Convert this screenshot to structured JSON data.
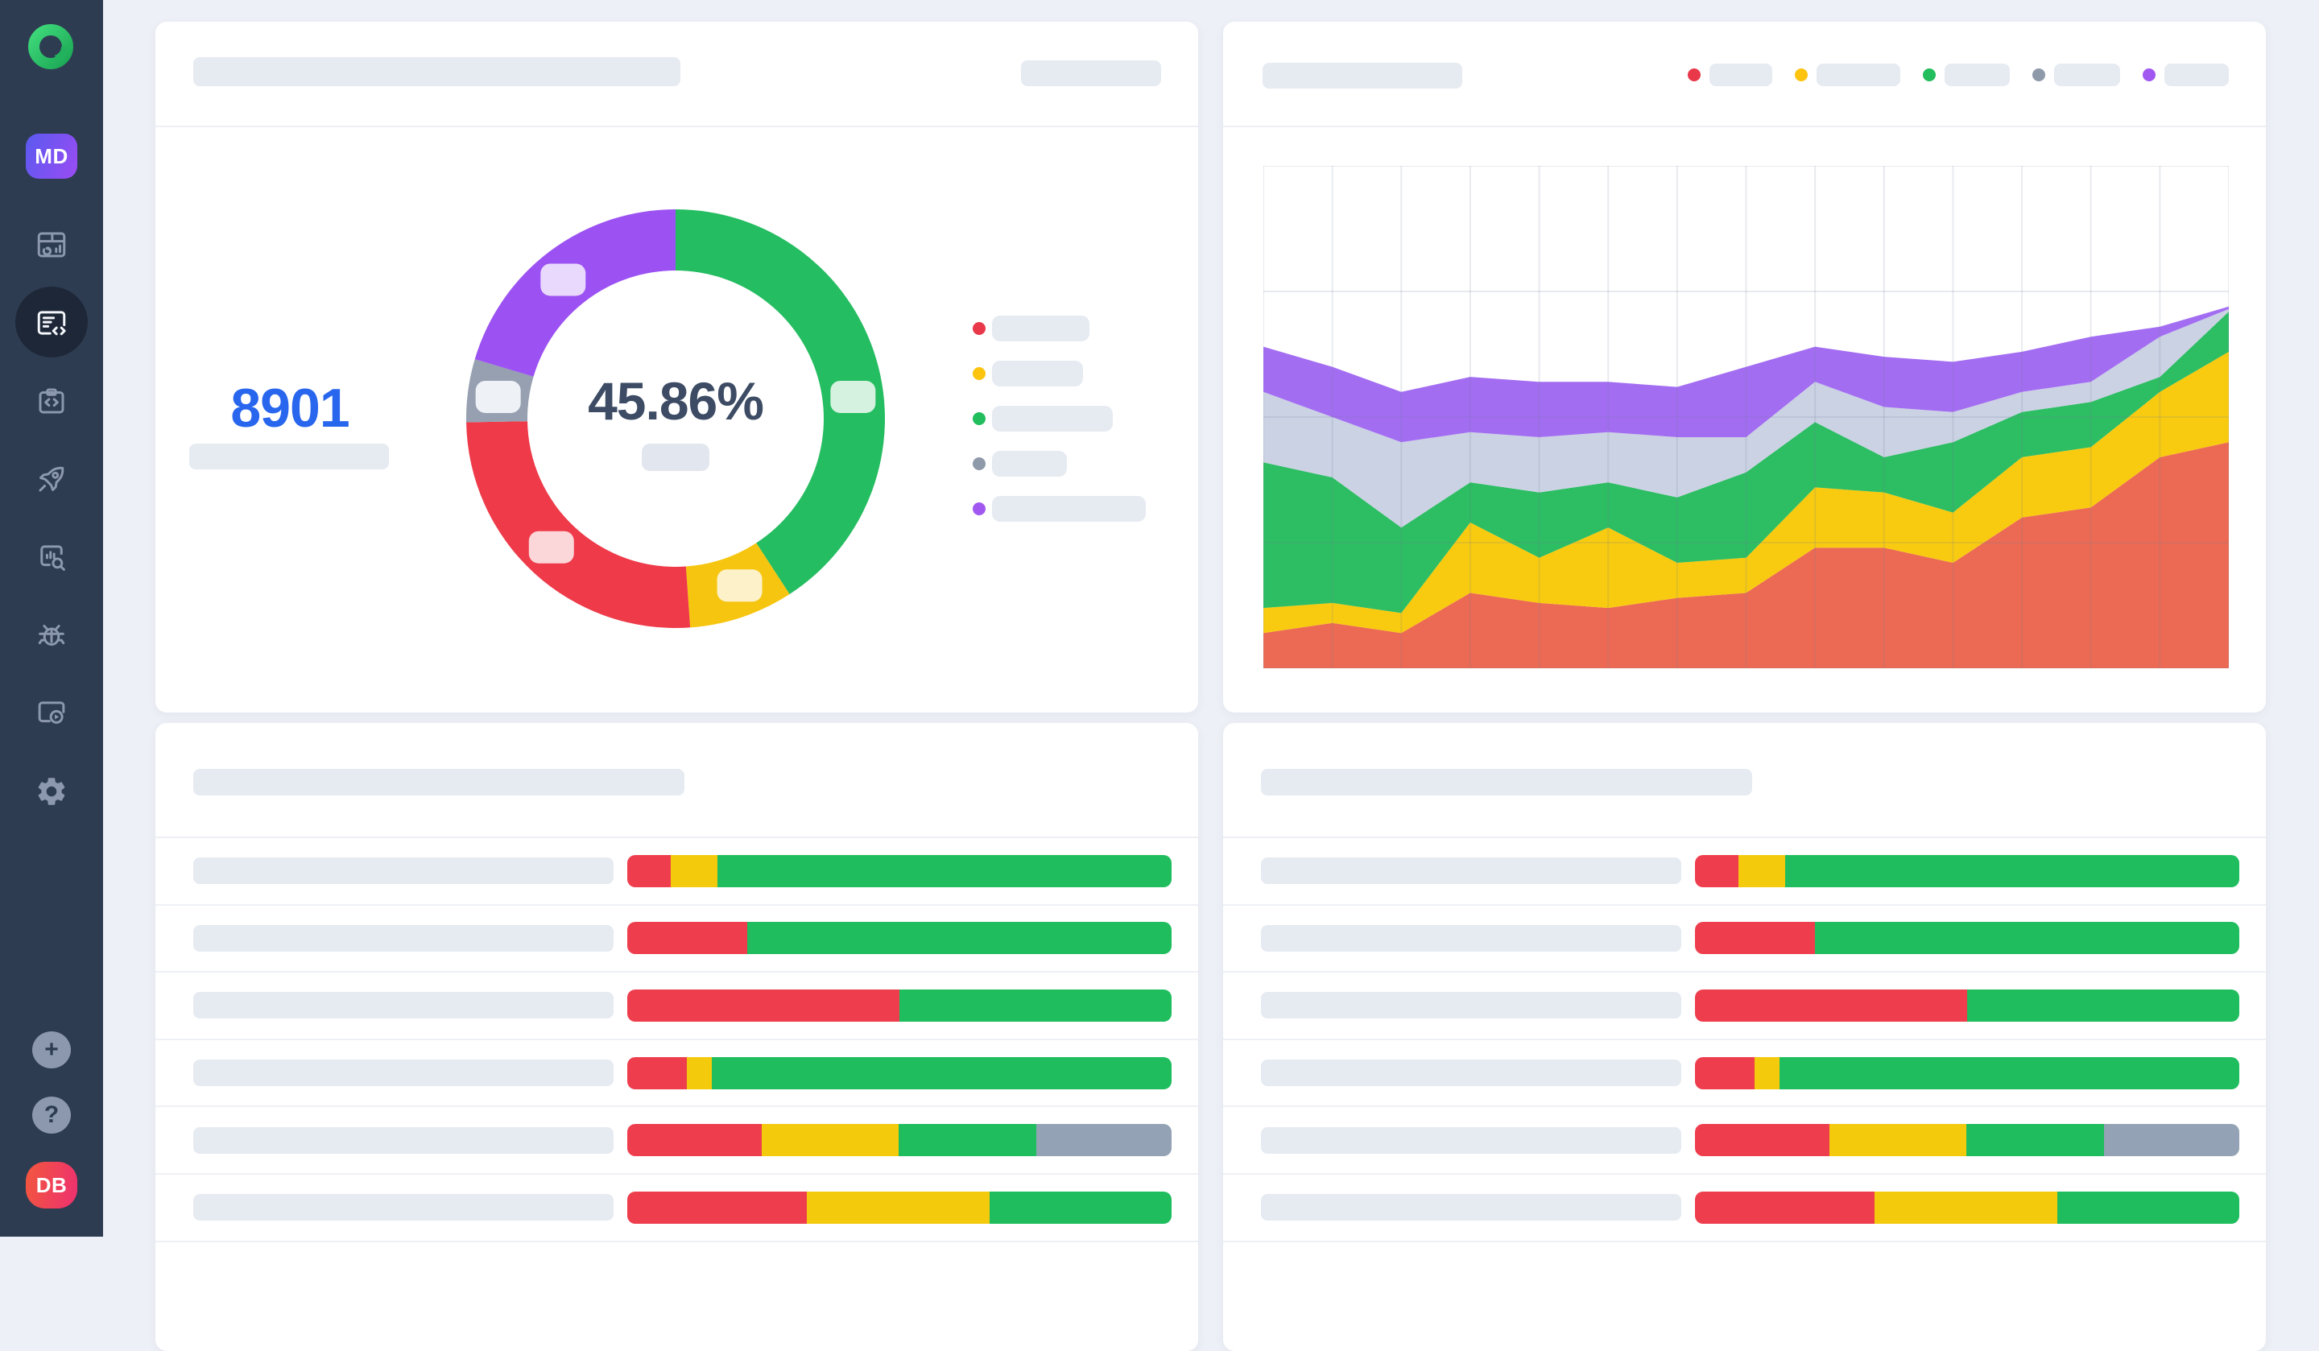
{
  "app": {
    "logo_icon": "allure-logo",
    "workspace_avatar": "MD",
    "user_avatar": "DB"
  },
  "sidebar": {
    "bg_color": "#2e3c52",
    "icon_color": "#8b98ad",
    "active_item_index": 1,
    "nav_icons": [
      "dashboard-window-icon",
      "document-code-icon",
      "clipboard-code-icon",
      "rocket-icon",
      "chart-search-icon",
      "bug-icon",
      "window-play-icon",
      "gear-icon"
    ],
    "bottom_icons": [
      "plus-icon",
      "question-icon"
    ],
    "plus_glyph": "+",
    "question_glyph": "?"
  },
  "stat_card": {
    "value": "8901",
    "value_color": "#2866ee"
  },
  "chart_data": [
    {
      "type": "pie",
      "title": "status donut (skeleton card, no text labels)",
      "center_label": "45.86%",
      "center_label_color": "#3d4c64",
      "segments": [
        {
          "name": "green",
          "color": "#25bd61",
          "tint": "#d4f2df",
          "deg": 147.0,
          "chip_deg": 83
        },
        {
          "name": "yellow",
          "color": "#f6c50f",
          "tint": "#fdf1c9",
          "deg": 29.0,
          "chip_deg": 159
        },
        {
          "name": "red",
          "color": "#ee3a49",
          "tint": "#fbd7da",
          "deg": 93.0,
          "chip_deg": 224
        },
        {
          "name": "gray",
          "color": "#96a0b1",
          "tint": "#eef1f5",
          "deg": 17.5,
          "chip_deg": 277
        },
        {
          "name": "purple",
          "color": "#9c52f2",
          "tint": "#e9d9fc",
          "deg": 73.5,
          "chip_deg": 321
        }
      ],
      "outer_radius": 260,
      "inner_radius": 184,
      "legend_position": "right",
      "legend": [
        {
          "color": "#e8384a",
          "w": 121
        },
        {
          "color": "#fcc40e",
          "w": 113
        },
        {
          "color": "#22bd5c",
          "w": 150
        },
        {
          "color": "#8e99aa",
          "w": 93
        },
        {
          "color": "#a158f0",
          "w": 191
        }
      ]
    },
    {
      "type": "area",
      "title": "stacked status trend (skeleton card, no axis labels)",
      "stacked": true,
      "x_points": 15,
      "grid": {
        "v_lines": 15,
        "h_lines": 5
      },
      "ylim_percent": [
        0,
        100
      ],
      "series": [
        {
          "name": "red",
          "color": "#ec6a54",
          "values": [
            7,
            9,
            7,
            15,
            13,
            12,
            14,
            15,
            24,
            24,
            21,
            30,
            32,
            42,
            45
          ]
        },
        {
          "name": "yellow",
          "color": "#f8cb10",
          "values": [
            5,
            4,
            4,
            14,
            9,
            16,
            7,
            7,
            12,
            11,
            10,
            12,
            12,
            13,
            18
          ]
        },
        {
          "name": "green",
          "color": "#2dbd63",
          "values": [
            29,
            25,
            17,
            8,
            13,
            9,
            13,
            17,
            13,
            7,
            14,
            9,
            9,
            3,
            8
          ]
        },
        {
          "name": "gray",
          "color": "#cbd2e4",
          "values": [
            14,
            12,
            17,
            10,
            11,
            10,
            12,
            7,
            8,
            10,
            6,
            4,
            4,
            8,
            0.5
          ]
        },
        {
          "name": "purple",
          "color": "#a36df2",
          "values": [
            9,
            10,
            10,
            11,
            11,
            10,
            10,
            14,
            7,
            10,
            10,
            8,
            9,
            2,
            0.5
          ]
        }
      ],
      "legend_position": "top-right",
      "legend": [
        {
          "color": "#e8384a",
          "w": 78
        },
        {
          "color": "#fcc40e",
          "w": 104
        },
        {
          "color": "#22bd5c",
          "w": 81
        },
        {
          "color": "#8e99aa",
          "w": 82
        },
        {
          "color": "#a158f0",
          "w": 80
        }
      ]
    },
    {
      "type": "bar",
      "title": "horizontal stacked status bars, left list card (6 rows, percent widths)",
      "bar_colors": {
        "red": "#ee3e4e",
        "yellow": "#f4ca0d",
        "green": "#20bd5e",
        "gray": "#93a2b4"
      },
      "rows": [
        [
          [
            "red",
            8
          ],
          [
            "yellow",
            8.5
          ],
          [
            "green",
            83.5
          ]
        ],
        [
          [
            "red",
            22
          ],
          [
            "green",
            78
          ]
        ],
        [
          [
            "red",
            50
          ],
          [
            "green",
            50
          ]
        ],
        [
          [
            "red",
            11
          ],
          [
            "yellow",
            4.5
          ],
          [
            "green",
            84.5
          ]
        ],
        [
          [
            "red",
            24.7
          ],
          [
            "yellow",
            25.2
          ],
          [
            "green",
            25.2
          ],
          [
            "gray",
            24.9
          ]
        ],
        [
          [
            "red",
            33
          ],
          [
            "yellow",
            33.5
          ],
          [
            "green",
            33.5
          ]
        ]
      ]
    },
    {
      "type": "bar",
      "title": "horizontal stacked status bars, right list card (6 rows, percent widths)",
      "bar_colors": {
        "red": "#ee3e4e",
        "yellow": "#f4ca0d",
        "green": "#20bd5e",
        "gray": "#93a2b4"
      },
      "rows": [
        [
          [
            "red",
            8
          ],
          [
            "yellow",
            8.5
          ],
          [
            "green",
            83.5
          ]
        ],
        [
          [
            "red",
            22
          ],
          [
            "green",
            78
          ]
        ],
        [
          [
            "red",
            50
          ],
          [
            "green",
            50
          ]
        ],
        [
          [
            "red",
            11
          ],
          [
            "yellow",
            4.5
          ],
          [
            "green",
            84.5
          ]
        ],
        [
          [
            "red",
            24.7
          ],
          [
            "yellow",
            25.2
          ],
          [
            "green",
            25.2
          ],
          [
            "gray",
            24.9
          ]
        ],
        [
          [
            "red",
            33
          ],
          [
            "yellow",
            33.5
          ],
          [
            "green",
            33.5
          ]
        ]
      ]
    }
  ]
}
